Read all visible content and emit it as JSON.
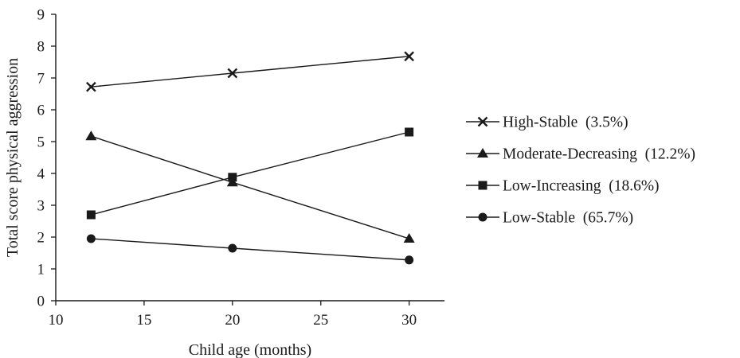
{
  "chart_data": {
    "type": "line",
    "title": "",
    "xlabel": "Child age (months)",
    "ylabel": "Total score physical aggression",
    "xlim": [
      10,
      32
    ],
    "ylim": [
      0,
      9
    ],
    "xticks": [
      10,
      15,
      20,
      25,
      30
    ],
    "yticks": [
      0,
      1,
      2,
      3,
      4,
      5,
      6,
      7,
      8,
      9
    ],
    "grid": false,
    "legend_position": "right",
    "x": [
      12,
      20,
      30
    ],
    "series": [
      {
        "name": "High-Stable  (3.5%)",
        "marker": "x",
        "color": "#1a1a1a",
        "values": [
          6.72,
          7.15,
          7.68
        ]
      },
      {
        "name": "Moderate-Decreasing  (12.2%)",
        "marker": "triangle",
        "color": "#1a1a1a",
        "values": [
          5.17,
          3.72,
          1.95
        ]
      },
      {
        "name": "Low-Increasing  (18.6%)",
        "marker": "square",
        "color": "#1a1a1a",
        "values": [
          2.7,
          3.88,
          5.3
        ]
      },
      {
        "name": "Low-Stable  (65.7%)",
        "marker": "circle",
        "color": "#1a1a1a",
        "values": [
          1.95,
          1.65,
          1.28
        ]
      }
    ]
  }
}
